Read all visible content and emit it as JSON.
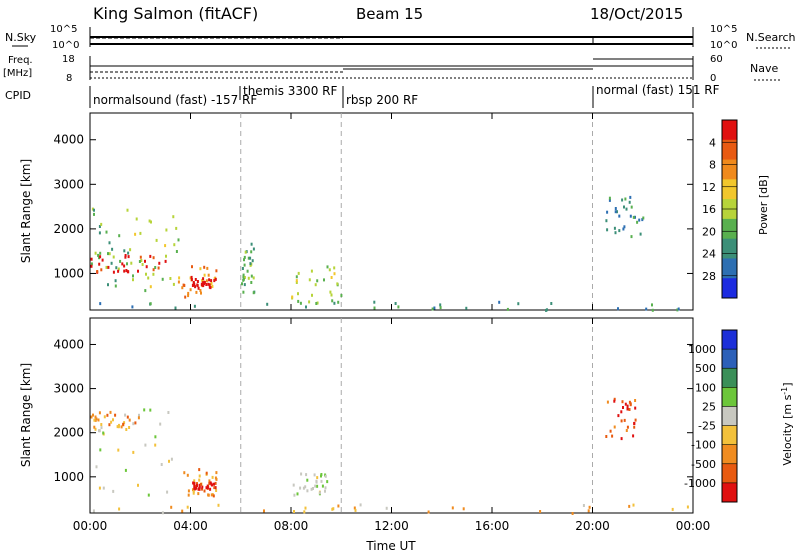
{
  "header": {
    "station": "King Salmon (fitACF)",
    "beam": "Beam 15",
    "date": "18/Oct/2015"
  },
  "strip_labels": {
    "nsky": "N.Sky",
    "nsky_top": "10^5",
    "nsky_bottom": "10^0",
    "nsearch": "N.Search",
    "nsearch_top": "10^5",
    "nsearch_bottom": "10^0",
    "freq_label_1": "Freq.",
    "freq_label_2": "[MHz]",
    "freq_top": "18",
    "freq_bottom": "8",
    "nave": "Nave",
    "nave_top": "60",
    "nave_bottom": "0",
    "cpid": "CPID"
  },
  "programs": [
    {
      "label": "normalsound (fast) -157 RF",
      "start_hour": 0,
      "end_hour": 6
    },
    {
      "label": "themis 3300 RF",
      "start_hour": 6,
      "end_hour": 10
    },
    {
      "label": "rbsp 200 RF",
      "start_hour": 10,
      "end_hour": 20
    },
    {
      "label": "normal (fast) 151 RF",
      "start_hour": 20,
      "end_hour": 24
    }
  ],
  "chart_data": [
    {
      "type": "heatmap",
      "panel": "power",
      "ylabel": "Slant Range [km]",
      "xlabel": "",
      "xlim": [
        0,
        24
      ],
      "ylim": [
        180,
        4600
      ],
      "yticks": [
        1000,
        2000,
        3000,
        4000
      ],
      "xticks_hours": [
        0,
        4,
        8,
        12,
        16,
        20,
        24
      ],
      "colorbar_label": "Power [dB]",
      "colorbar_ticks": [
        "4",
        "8",
        "12",
        "16",
        "20",
        "24",
        "28"
      ],
      "colors": [
        "#1c2be0",
        "#2d6fb2",
        "#3c8f78",
        "#59b04f",
        "#b7d43a",
        "#f2c72c",
        "#f08a1c",
        "#e85a12",
        "#e01010"
      ],
      "scatter_regions": [
        {
          "t": [
            0.0,
            1.5
          ],
          "r": [
            600,
            2600
          ],
          "level": 3
        },
        {
          "t": [
            0.0,
            3.0
          ],
          "r": [
            1050,
            1450
          ],
          "level": 8
        },
        {
          "t": [
            1.5,
            3.5
          ],
          "r": [
            600,
            2400
          ],
          "level": 4
        },
        {
          "t": [
            3.5,
            5.0
          ],
          "r": [
            500,
            1200
          ],
          "level": 6
        },
        {
          "t": [
            4.0,
            5.0
          ],
          "r": [
            700,
            950
          ],
          "level": 9
        },
        {
          "t": [
            6.0,
            6.5
          ],
          "r": [
            600,
            1700
          ],
          "level": 3
        },
        {
          "t": [
            8.0,
            10.0
          ],
          "r": [
            300,
            1200
          ],
          "level": 4
        },
        {
          "t": [
            0.0,
            24.0
          ],
          "r": [
            200,
            400
          ],
          "level": 2
        },
        {
          "t": [
            20.5,
            22.0
          ],
          "r": [
            1800,
            2800
          ],
          "level": 2
        }
      ]
    },
    {
      "type": "heatmap",
      "panel": "velocity",
      "ylabel": "Slant Range [km]",
      "xlabel": "Time UT",
      "xlim": [
        0,
        24
      ],
      "ylim": [
        180,
        4600
      ],
      "yticks": [
        1000,
        2000,
        3000,
        4000
      ],
      "xticks": [
        "00:00",
        "04:00",
        "08:00",
        "12:00",
        "16:00",
        "20:00",
        "00:00"
      ],
      "colorbar_label": "Velocity [m s-1]",
      "colorbar_ticks": [
        "1000",
        "500",
        "100",
        "25",
        "-25",
        "-100",
        "-500",
        "-1000"
      ],
      "colors": [
        "#1c2fd8",
        "#2c60b8",
        "#3a8f58",
        "#6cc63a",
        "#c8c8c0",
        "#f3c13b",
        "#f08c20",
        "#e85a10",
        "#e01010"
      ],
      "scatter_regions": [
        {
          "t": [
            0.0,
            3.5
          ],
          "r": [
            600,
            2600
          ],
          "level": 4
        },
        {
          "t": [
            0.0,
            2.0
          ],
          "r": [
            2100,
            2500
          ],
          "level": 6
        },
        {
          "t": [
            3.5,
            5.0
          ],
          "r": [
            600,
            1200
          ],
          "level": 6
        },
        {
          "t": [
            4.0,
            5.0
          ],
          "r": [
            750,
            900
          ],
          "level": 8
        },
        {
          "t": [
            8.0,
            9.5
          ],
          "r": [
            600,
            1100
          ],
          "level": 4
        },
        {
          "t": [
            0.0,
            24.0
          ],
          "r": [
            200,
            400
          ],
          "level": 5
        },
        {
          "t": [
            20.5,
            22.0
          ],
          "r": [
            1900,
            2800
          ],
          "level": 7
        }
      ]
    }
  ]
}
